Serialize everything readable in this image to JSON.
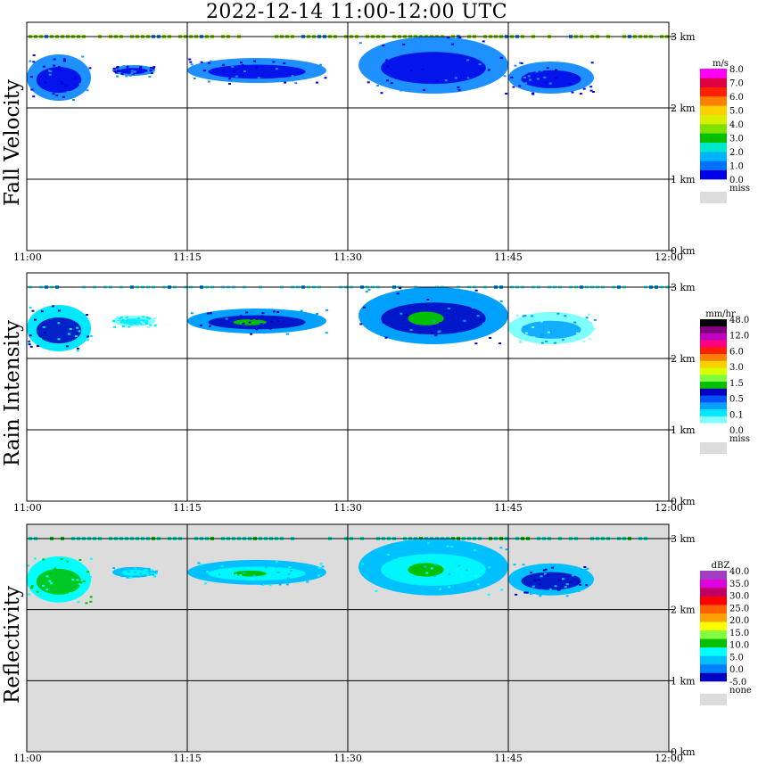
{
  "title": "2022-12-14   11:00-12:00 UTC",
  "time_ticks": [
    "11:00",
    "11:15",
    "11:30",
    "11:45",
    "12:00"
  ],
  "height_ticks": [
    "0 km",
    "1 km",
    "2 km",
    "3 km"
  ],
  "chart_data": [
    {
      "type": "heatmap",
      "panel": "fall-velocity",
      "ylabel": "Fall Velocity",
      "xlim": [
        "11:00",
        "12:00"
      ],
      "ylim_km": [
        0,
        3.2
      ],
      "grid": true,
      "background": "#ffffff",
      "colorbar": {
        "unit": "m/s",
        "miss_label": "miss",
        "miss_color": "#dcdcdc",
        "colors": [
          "#0000e8",
          "#0070ff",
          "#00b4ff",
          "#00e8c8",
          "#00c000",
          "#80e000",
          "#d8f000",
          "#ffd000",
          "#ff8000",
          "#ff2000",
          "#e00040",
          "#ff00ff"
        ],
        "labels": [
          "0.0",
          "1.0",
          "2.0",
          "3.0",
          "4.0",
          "5.0",
          "6.0",
          "7.0",
          "8.0"
        ]
      },
      "cloud_layers": [
        {
          "t_start": "11:00",
          "t_end": "11:06",
          "top_km": 2.75,
          "base_km": 2.1,
          "color": "#1e90ff",
          "core_color": "#0000e8"
        },
        {
          "t_start": "11:08",
          "t_end": "11:12",
          "top_km": 2.6,
          "base_km": 2.45,
          "color": "#1e90ff",
          "core_color": "#0000e8"
        },
        {
          "t_start": "11:15",
          "t_end": "11:28",
          "top_km": 2.7,
          "base_km": 2.35,
          "color": "#1e90ff",
          "core_color": "#0000e8"
        },
        {
          "t_start": "11:31",
          "t_end": "11:45",
          "top_km": 3.0,
          "base_km": 2.2,
          "color": "#1e90ff",
          "core_color": "#0000e8"
        },
        {
          "t_start": "11:45",
          "t_end": "11:53",
          "top_km": 2.65,
          "base_km": 2.2,
          "color": "#1e90ff",
          "core_color": "#0000e8"
        }
      ],
      "top_band": {
        "height_km": 3.0,
        "color": "#80e000",
        "accent": "#1e90ff"
      }
    },
    {
      "type": "heatmap",
      "panel": "rain-intensity",
      "ylabel": "Rain Intensity",
      "xlim": [
        "11:00",
        "12:00"
      ],
      "ylim_km": [
        0,
        3.2
      ],
      "grid": true,
      "background": "#ffffff",
      "colorbar": {
        "unit": "mm/hr",
        "miss_label": "miss",
        "miss_color": "#dcdcdc",
        "colors": [
          "#ffffff",
          "#80ffff",
          "#00e8ff",
          "#00a0ff",
          "#0050ff",
          "#0000c0",
          "#00c000",
          "#80ff40",
          "#d8ff00",
          "#ffd000",
          "#ff8000",
          "#ff2000",
          "#ff0080",
          "#c000c0",
          "#800080",
          "#000000"
        ],
        "labels": [
          "0.0",
          "0.1",
          "0.5",
          "1.5",
          "3.0",
          "6.0",
          "12.0",
          "48.0"
        ]
      },
      "cloud_layers": [
        {
          "t_start": "11:00",
          "t_end": "11:06",
          "top_km": 2.75,
          "base_km": 2.1,
          "color": "#00e8ff",
          "core_color": "#0000c0"
        },
        {
          "t_start": "11:08",
          "t_end": "11:12",
          "top_km": 2.6,
          "base_km": 2.45,
          "color": "#80ffff",
          "core_color": "#00e8ff"
        },
        {
          "t_start": "11:15",
          "t_end": "11:28",
          "top_km": 2.7,
          "base_km": 2.35,
          "color": "#00a0ff",
          "core_color": "#0000c0",
          "peak_color": "#00c000"
        },
        {
          "t_start": "11:31",
          "t_end": "11:45",
          "top_km": 3.0,
          "base_km": 2.2,
          "color": "#00a0ff",
          "core_color": "#0000c0",
          "peak_color": "#00c000"
        },
        {
          "t_start": "11:45",
          "t_end": "11:53",
          "top_km": 2.65,
          "base_km": 2.2,
          "color": "#80ffff",
          "core_color": "#00a0ff"
        }
      ],
      "top_band": {
        "height_km": 3.0,
        "color": "#80ffff",
        "accent": "#00a0ff"
      }
    },
    {
      "type": "heatmap",
      "panel": "reflectivity",
      "ylabel": "Reflectivity",
      "xlim": [
        "11:00",
        "12:00"
      ],
      "ylim_km": [
        0,
        3.2
      ],
      "grid": true,
      "background": "#dcdcdc",
      "colorbar": {
        "unit": "dBZ",
        "miss_label": "none",
        "miss_color": "#dcdcdc",
        "colors": [
          "#0000c0",
          "#0080ff",
          "#00c0ff",
          "#00ffff",
          "#00c000",
          "#80ff40",
          "#ffff00",
          "#ffa000",
          "#ff6000",
          "#ff0000",
          "#c00060",
          "#e000e0",
          "#a040c0"
        ],
        "labels": [
          "-5.0",
          "0.0",
          "5.0",
          "10.0",
          "15.0",
          "20.0",
          "25.0",
          "30.0",
          "35.0",
          "40.0"
        ]
      },
      "cloud_layers": [
        {
          "t_start": "11:00",
          "t_end": "11:06",
          "top_km": 2.75,
          "base_km": 2.1,
          "color": "#00ffff",
          "core_color": "#00c000"
        },
        {
          "t_start": "11:08",
          "t_end": "11:12",
          "top_km": 2.6,
          "base_km": 2.45,
          "color": "#00c0ff",
          "core_color": "#00ffff"
        },
        {
          "t_start": "11:15",
          "t_end": "11:28",
          "top_km": 2.7,
          "base_km": 2.35,
          "color": "#00c0ff",
          "core_color": "#00ffff",
          "peak_color": "#00c000"
        },
        {
          "t_start": "11:31",
          "t_end": "11:45",
          "top_km": 3.0,
          "base_km": 2.2,
          "color": "#00c0ff",
          "core_color": "#00ffff",
          "peak_color": "#00c000"
        },
        {
          "t_start": "11:45",
          "t_end": "11:53",
          "top_km": 2.65,
          "base_km": 2.2,
          "color": "#00c0ff",
          "core_color": "#0000c0"
        }
      ],
      "top_band": {
        "height_km": 3.0,
        "color": "#00e8c8",
        "accent": "#00c000"
      }
    }
  ]
}
